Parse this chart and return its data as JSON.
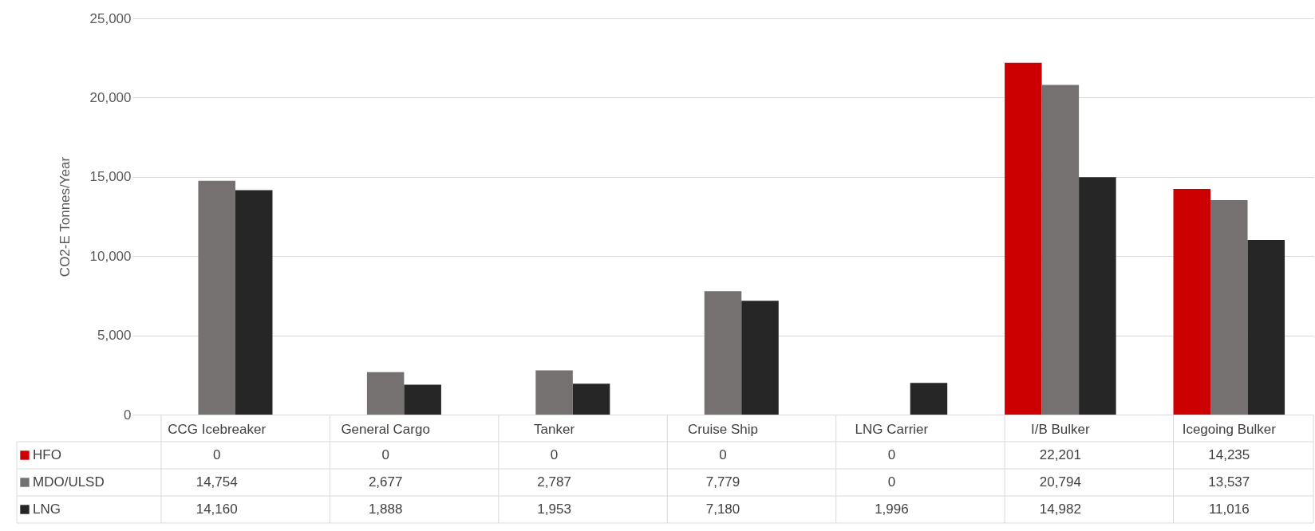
{
  "chart_data": {
    "type": "bar",
    "ylabel": "CO2-E  Tonnes/Year",
    "categories": [
      "CCG Icebreaker",
      "General Cargo",
      "Tanker",
      "Cruise Ship",
      "LNG Carrier",
      "I/B Bulker",
      "Icegoing Bulker"
    ],
    "series": [
      {
        "name": "HFO",
        "color": "#cc0000",
        "values": [
          0,
          0,
          0,
          0,
          0,
          22201,
          14235
        ],
        "value_labels": [
          "0",
          "0",
          "0",
          "0",
          "0",
          "22,201",
          "14,235"
        ]
      },
      {
        "name": "MDO/ULSD",
        "color": "#767171",
        "values": [
          14754,
          2677,
          2787,
          7779,
          0,
          20794,
          13537
        ],
        "value_labels": [
          "14,754",
          "2,677",
          "2,787",
          "7,779",
          "0",
          "20,794",
          "13,537"
        ]
      },
      {
        "name": "LNG",
        "color": "#262626",
        "values": [
          14160,
          1888,
          1953,
          7180,
          1996,
          14982,
          11016
        ],
        "value_labels": [
          "14,160",
          "1,888",
          "1,953",
          "7,180",
          "1,996",
          "14,982",
          "11,016"
        ]
      }
    ],
    "ylim": [
      0,
      25000
    ],
    "yticks": [
      {
        "value": 0,
        "label": "0"
      },
      {
        "value": 5000,
        "label": "5,000"
      },
      {
        "value": 10000,
        "label": "10,000"
      },
      {
        "value": 15000,
        "label": "15,000"
      },
      {
        "value": 20000,
        "label": "20,000"
      },
      {
        "value": 25000,
        "label": "25,000"
      }
    ],
    "grid": "y",
    "legend": "bottom left"
  }
}
